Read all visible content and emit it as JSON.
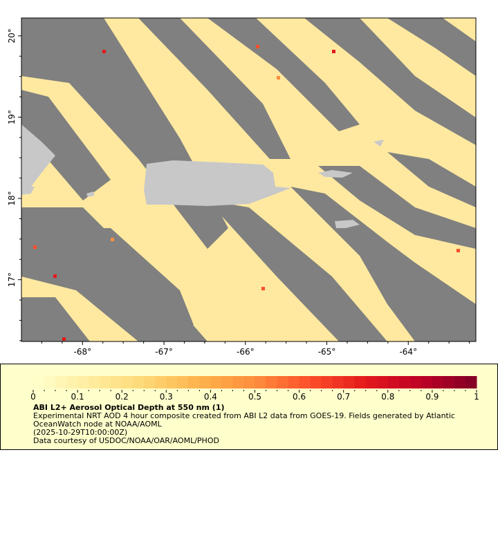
{
  "map": {
    "lon_ticks": [
      "-68°",
      "-67°",
      "-66°",
      "-65°",
      "-64°"
    ],
    "lon_values": [
      -68,
      -67,
      -66,
      -65,
      -64
    ],
    "lat_ticks": [
      "20°",
      "19°",
      "18°",
      "17°"
    ],
    "lat_values": [
      20,
      19,
      18,
      17
    ],
    "lon_range": [
      -68.75,
      -63.17
    ],
    "lat_range": [
      16.24,
      20.22
    ],
    "colors": {
      "no_data": "#808080",
      "land": "#c8c8c8",
      "low_aod": "#ffe9a0",
      "frame": "#000000"
    }
  },
  "legend": {
    "colorbar_ticks": [
      "0",
      "0.1",
      "0.2",
      "0.3",
      "0.4",
      "0.5",
      "0.6",
      "0.7",
      "0.8",
      "0.9",
      "1"
    ],
    "colorbar_range": [
      0,
      1
    ],
    "colormap": [
      "#ffffcc",
      "#ffeda0",
      "#fed976",
      "#feb24c",
      "#fd8d3c",
      "#fc4e2a",
      "#e31a1c",
      "#bd0026",
      "#800026"
    ],
    "title": "ABI L2+ Aerosol Optical Depth at 550 nm (1)",
    "line1": "Experimental NRT AOD 4 hour composite created from ABI L2 data from GOES-19. Fields generated by Atlantic",
    "line2": "OceanWatch node at NOAA/AOML",
    "line3": "(2025-10-29T10:00:00Z)",
    "line4": "Data courtesy of USDOC/NOAA/OAR/AOML/PHOD"
  }
}
